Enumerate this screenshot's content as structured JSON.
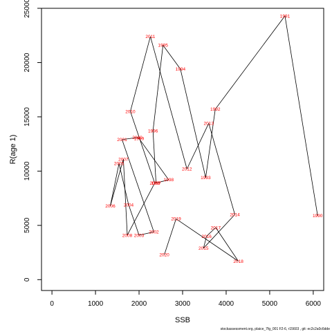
{
  "chart_data": {
    "type": "line",
    "xlabel": "SSB",
    "ylabel": "R(age 1)",
    "xlim": [
      -240,
      6240
    ],
    "ylim": [
      -1000,
      25000
    ],
    "xticks": [
      0,
      1000,
      2000,
      3000,
      4000,
      5000,
      6000
    ],
    "yticks": [
      0,
      5000,
      10000,
      15000,
      20000,
      25000
    ],
    "grid": false,
    "line_color": "#000000",
    "label_color": "#ff0000",
    "points": [
      {
        "year": "1990",
        "x": 6100,
        "y": 5900
      },
      {
        "year": "1991",
        "x": 5350,
        "y": 24300
      },
      {
        "year": "1992",
        "x": 3750,
        "y": 15700
      },
      {
        "year": "1993",
        "x": 3530,
        "y": 9400
      },
      {
        "year": "1994",
        "x": 2950,
        "y": 19400
      },
      {
        "year": "1995",
        "x": 2550,
        "y": 21600
      },
      {
        "year": "1996",
        "x": 2320,
        "y": 13700
      },
      {
        "year": "1997",
        "x": 2390,
        "y": 8900
      },
      {
        "year": "1998",
        "x": 2680,
        "y": 9200
      },
      {
        "year": "1999",
        "x": 2000,
        "y": 13000
      },
      {
        "year": "2000",
        "x": 1960,
        "y": 13100
      },
      {
        "year": "2001",
        "x": 1610,
        "y": 12900
      },
      {
        "year": "2002",
        "x": 2340,
        "y": 4400
      },
      {
        "year": "2003",
        "x": 2000,
        "y": 4100
      },
      {
        "year": "2004",
        "x": 1760,
        "y": 6900
      },
      {
        "year": "2005",
        "x": 1540,
        "y": 10700
      },
      {
        "year": "2006",
        "x": 1340,
        "y": 6800
      },
      {
        "year": "2007",
        "x": 1640,
        "y": 11100
      },
      {
        "year": "2008",
        "x": 1730,
        "y": 4100
      },
      {
        "year": "2009",
        "x": 2360,
        "y": 8900
      },
      {
        "year": "2010",
        "x": 1800,
        "y": 15500
      },
      {
        "year": "2011",
        "x": 2260,
        "y": 22400
      },
      {
        "year": "2012",
        "x": 3100,
        "y": 10200
      },
      {
        "year": "2013",
        "x": 3600,
        "y": 14400
      },
      {
        "year": "2014",
        "x": 4200,
        "y": 6000
      },
      {
        "year": "2015",
        "x": 3480,
        "y": 2900
      },
      {
        "year": "2016",
        "x": 3550,
        "y": 4000
      },
      {
        "year": "2017",
        "x": 3760,
        "y": 4800
      },
      {
        "year": "2018",
        "x": 4280,
        "y": 1700
      },
      {
        "year": "2019",
        "x": 2850,
        "y": 5600
      },
      {
        "year": "2020",
        "x": 2580,
        "y": 2300
      }
    ]
  },
  "footer": "stockassessment.org, plaice_7fg_001 F2-6, r15603 , git: ec2c2a0c6dde"
}
